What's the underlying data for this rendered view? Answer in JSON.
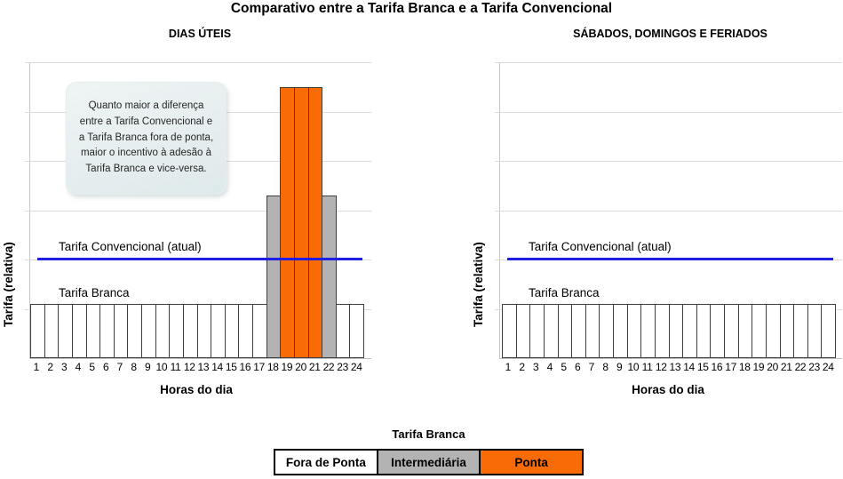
{
  "title": "Comparativo entre a Tarifa Branca e a Tarifa Convencional",
  "colors": {
    "fora_de_ponta": "#FFFFFF",
    "intermediaria": "#B3B3B3",
    "ponta": "#F96B07",
    "convencional_line": "#1E1EE4",
    "bar_border": "#3F3F3F",
    "gridline": "#DCDCDC"
  },
  "callout": {
    "text": "Quanto maior a diferença entre a Tarifa Convencional e a Tarifa Branca fora de ponta, maior o incentivo à adesão à Tarifa Branca e vice-versa."
  },
  "legend": {
    "title": "Tarifa Branca",
    "items": [
      {
        "label": "Fora de Ponta",
        "color_key": "fora_de_ponta"
      },
      {
        "label": "Intermediária",
        "color_key": "intermediaria"
      },
      {
        "label": "Ponta",
        "color_key": "ponta"
      }
    ]
  },
  "chart_data": [
    {
      "type": "bar",
      "title": "DIAS ÚTEIS",
      "xlabel": "Horas do dia",
      "ylabel": "Tarifa (relativa)",
      "ylim": [
        0,
        6
      ],
      "gridline_step": 1,
      "x": [
        1,
        2,
        3,
        4,
        5,
        6,
        7,
        8,
        9,
        10,
        11,
        12,
        13,
        14,
        15,
        16,
        17,
        18,
        19,
        20,
        21,
        22,
        23,
        24
      ],
      "values": [
        1.1,
        1.1,
        1.1,
        1.1,
        1.1,
        1.1,
        1.1,
        1.1,
        1.1,
        1.1,
        1.1,
        1.1,
        1.1,
        1.1,
        1.1,
        1.1,
        1.1,
        3.3,
        5.5,
        5.5,
        5.5,
        3.3,
        1.1,
        1.1
      ],
      "segments": [
        "fora_de_ponta",
        "fora_de_ponta",
        "fora_de_ponta",
        "fora_de_ponta",
        "fora_de_ponta",
        "fora_de_ponta",
        "fora_de_ponta",
        "fora_de_ponta",
        "fora_de_ponta",
        "fora_de_ponta",
        "fora_de_ponta",
        "fora_de_ponta",
        "fora_de_ponta",
        "fora_de_ponta",
        "fora_de_ponta",
        "fora_de_ponta",
        "fora_de_ponta",
        "intermediaria",
        "ponta",
        "ponta",
        "ponta",
        "intermediaria",
        "fora_de_ponta",
        "fora_de_ponta"
      ],
      "convencional_value": 2.0,
      "annotations": {
        "convencional": "Tarifa Convencional (atual)",
        "branca": "Tarifa Branca"
      }
    },
    {
      "type": "bar",
      "title": "SÁBADOS, DOMINGOS E FERIADOS",
      "xlabel": "Horas do dia",
      "ylabel": "Tarifa (relativa)",
      "ylim": [
        0,
        6
      ],
      "gridline_step": 1,
      "x": [
        1,
        2,
        3,
        4,
        5,
        6,
        7,
        8,
        9,
        10,
        11,
        12,
        13,
        14,
        15,
        16,
        17,
        18,
        19,
        20,
        21,
        22,
        23,
        24
      ],
      "values": [
        1.1,
        1.1,
        1.1,
        1.1,
        1.1,
        1.1,
        1.1,
        1.1,
        1.1,
        1.1,
        1.1,
        1.1,
        1.1,
        1.1,
        1.1,
        1.1,
        1.1,
        1.1,
        1.1,
        1.1,
        1.1,
        1.1,
        1.1,
        1.1
      ],
      "segments": [
        "fora_de_ponta",
        "fora_de_ponta",
        "fora_de_ponta",
        "fora_de_ponta",
        "fora_de_ponta",
        "fora_de_ponta",
        "fora_de_ponta",
        "fora_de_ponta",
        "fora_de_ponta",
        "fora_de_ponta",
        "fora_de_ponta",
        "fora_de_ponta",
        "fora_de_ponta",
        "fora_de_ponta",
        "fora_de_ponta",
        "fora_de_ponta",
        "fora_de_ponta",
        "fora_de_ponta",
        "fora_de_ponta",
        "fora_de_ponta",
        "fora_de_ponta",
        "fora_de_ponta",
        "fora_de_ponta",
        "fora_de_ponta"
      ],
      "convencional_value": 2.0,
      "annotations": {
        "convencional": "Tarifa Convencional (atual)",
        "branca": "Tarifa Branca"
      }
    }
  ]
}
